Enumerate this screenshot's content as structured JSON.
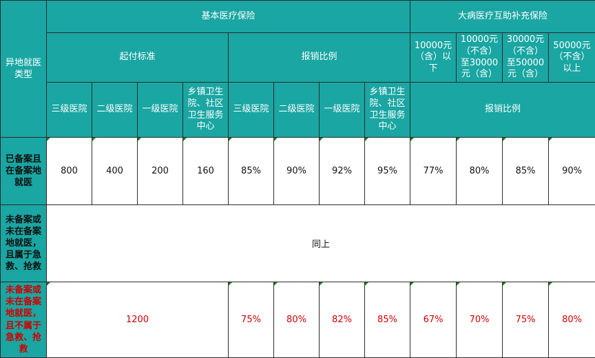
{
  "header": {
    "type_label": "异地就医类型",
    "basic_insurance": "基本医疗保险",
    "critical_insurance": "大病医疗互助补充保险",
    "threshold": "起付标准",
    "reimbursement_ratio": "报销比例",
    "tiers": {
      "t1": "10000元（含）以下",
      "t2": "10000元（不含）至30000元（含）",
      "t3": "30000元（不含）至50000元（含）",
      "t4": "50000元（不含）以上"
    },
    "hospitals": [
      "三级医院",
      "二级医院",
      "一级医院",
      "乡镇卫生院、社区卫生服务中心"
    ],
    "critical_ratio": "报销比例"
  },
  "rows": {
    "registered": {
      "label": "已备案且在备案地就医",
      "threshold": [
        "800",
        "400",
        "200",
        "160"
      ],
      "basic_ratio": [
        "85%",
        "90%",
        "92%",
        "95%"
      ],
      "critical_ratio": [
        "77%",
        "80%",
        "85%",
        "90%"
      ]
    },
    "emergency": {
      "label": "未备案或未在备案地就医，且属于急救、抢救",
      "merged": "同上"
    },
    "non_emergency": {
      "label": "未备案或未在备案地就医，且不属于急救、抢救",
      "threshold": "1200",
      "basic_ratio": [
        "75%",
        "80%",
        "82%",
        "85%"
      ],
      "critical_ratio": [
        "67%",
        "70%",
        "75%",
        "80%"
      ]
    }
  },
  "colors": {
    "header_bg": "#1aa6a2",
    "border": "#2b2b2b",
    "red_text": "#d00000",
    "flag": "#1f7a1f"
  }
}
